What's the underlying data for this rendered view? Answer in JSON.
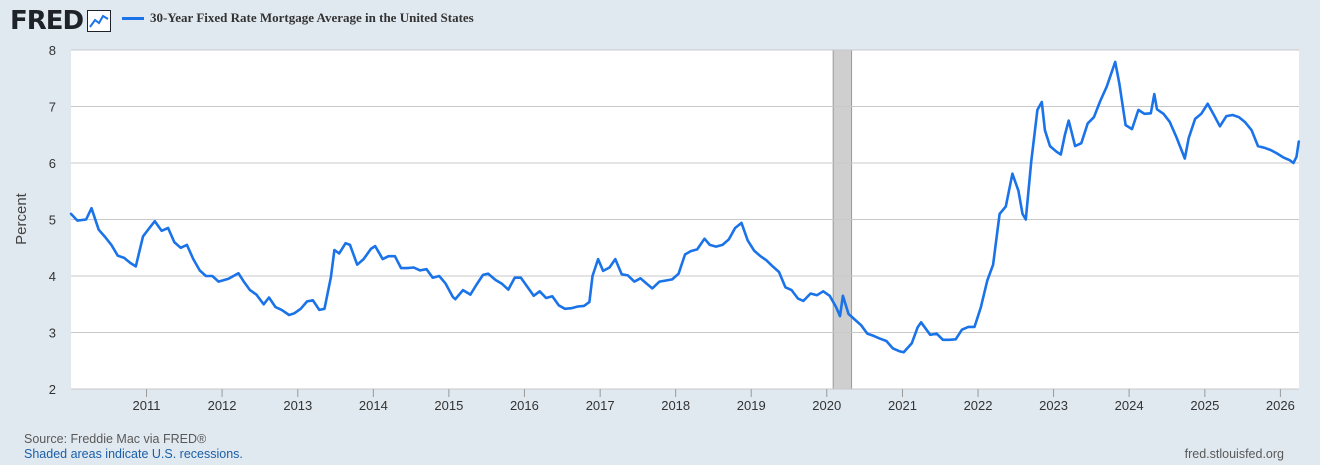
{
  "header": {
    "logo_text": "FRED",
    "logo_icon": "chart-line-icon"
  },
  "colors": {
    "background": "#e1e9f0",
    "plot_bg": "#ffffff",
    "series": "#1a73e8",
    "grid": "#c8c8c8",
    "recession": "#cfcfcf"
  },
  "chart_data": {
    "type": "line",
    "title": "30-Year Fixed Rate Mortgage Average in the United States",
    "ylabel": "Percent",
    "xlabel": "",
    "ylim": [
      2,
      8
    ],
    "xlim": [
      "2010-01-01",
      "2026-04-01"
    ],
    "yticks": [
      2,
      3,
      4,
      5,
      6,
      7,
      8
    ],
    "xticks": [
      "2011",
      "2012",
      "2013",
      "2014",
      "2015",
      "2016",
      "2017",
      "2018",
      "2019",
      "2020",
      "2021",
      "2022",
      "2023",
      "2024",
      "2025",
      "2026"
    ],
    "grid": true,
    "legend_position": "top",
    "recessions": [
      {
        "start": "2020-02-01",
        "end": "2020-04-30"
      }
    ],
    "series": [
      {
        "name": "30-Year Fixed Rate Mortgage Average in the United States",
        "x": [
          "2010-01-01",
          "2010-02-01",
          "2010-03-15",
          "2010-04-10",
          "2010-05-15",
          "2010-06-15",
          "2010-07-15",
          "2010-08-15",
          "2010-09-15",
          "2010-10-15",
          "2010-11-10",
          "2010-12-15",
          "2011-01-15",
          "2011-02-10",
          "2011-03-15",
          "2011-04-15",
          "2011-05-15",
          "2011-06-15",
          "2011-07-15",
          "2011-08-15",
          "2011-09-15",
          "2011-10-15",
          "2011-11-15",
          "2011-12-15",
          "2012-02-01",
          "2012-03-20",
          "2012-04-15",
          "2012-05-15",
          "2012-06-15",
          "2012-07-20",
          "2012-08-15",
          "2012-09-15",
          "2012-10-15",
          "2012-11-20",
          "2012-12-15",
          "2013-01-15",
          "2013-02-15",
          "2013-03-15",
          "2013-04-15",
          "2013-05-10",
          "2013-06-10",
          "2013-06-27",
          "2013-07-20",
          "2013-08-20",
          "2013-09-10",
          "2013-10-15",
          "2013-11-15",
          "2013-12-20",
          "2014-01-10",
          "2014-02-15",
          "2014-03-15",
          "2014-04-15",
          "2014-05-15",
          "2014-06-15",
          "2014-07-15",
          "2014-08-15",
          "2014-09-15",
          "2014-10-15",
          "2014-11-15",
          "2014-12-15",
          "2015-01-20",
          "2015-02-01",
          "2015-03-10",
          "2015-04-15",
          "2015-05-15",
          "2015-06-15",
          "2015-07-10",
          "2015-08-15",
          "2015-09-15",
          "2015-10-15",
          "2015-11-15",
          "2015-12-15",
          "2016-01-15",
          "2016-02-15",
          "2016-03-15",
          "2016-04-15",
          "2016-05-15",
          "2016-06-15",
          "2016-07-15",
          "2016-08-15",
          "2016-09-15",
          "2016-10-15",
          "2016-11-10",
          "2016-11-25",
          "2016-12-22",
          "2017-01-15",
          "2017-02-15",
          "2017-03-15",
          "2017-04-15",
          "2017-05-15",
          "2017-06-15",
          "2017-07-15",
          "2017-08-15",
          "2017-09-10",
          "2017-10-15",
          "2017-11-15",
          "2017-12-15",
          "2018-01-15",
          "2018-02-15",
          "2018-03-15",
          "2018-04-15",
          "2018-05-20",
          "2018-06-15",
          "2018-07-15",
          "2018-08-15",
          "2018-09-15",
          "2018-10-15",
          "2018-11-15",
          "2018-12-15",
          "2019-01-15",
          "2019-02-15",
          "2019-03-15",
          "2019-04-15",
          "2019-05-15",
          "2019-06-15",
          "2019-07-15",
          "2019-08-15",
          "2019-09-10",
          "2019-10-15",
          "2019-11-15",
          "2019-12-15",
          "2020-01-15",
          "2020-02-15",
          "2020-03-05",
          "2020-03-19",
          "2020-04-15",
          "2020-05-15",
          "2020-06-15",
          "2020-07-15",
          "2020-08-15",
          "2020-09-15",
          "2020-10-15",
          "2020-11-15",
          "2020-12-15",
          "2021-01-07",
          "2021-02-15",
          "2021-03-15",
          "2021-04-01",
          "2021-05-15",
          "2021-06-15",
          "2021-07-15",
          "2021-08-15",
          "2021-09-15",
          "2021-10-15",
          "2021-11-15",
          "2021-12-15",
          "2022-01-15",
          "2022-02-15",
          "2022-03-15",
          "2022-04-15",
          "2022-05-15",
          "2022-06-16",
          "2022-07-15",
          "2022-08-04",
          "2022-08-20",
          "2022-09-15",
          "2022-10-15",
          "2022-11-05",
          "2022-11-20",
          "2022-12-15",
          "2023-01-15",
          "2023-02-05",
          "2023-02-25",
          "2023-03-15",
          "2023-04-15",
          "2023-05-15",
          "2023-06-15",
          "2023-07-15",
          "2023-08-15",
          "2023-09-15",
          "2023-10-26",
          "2023-11-15",
          "2023-12-15",
          "2024-01-15",
          "2024-02-15",
          "2024-03-15",
          "2024-04-15",
          "2024-05-02",
          "2024-05-15",
          "2024-06-15",
          "2024-07-15",
          "2024-08-15",
          "2024-09-26",
          "2024-10-15",
          "2024-11-15",
          "2024-12-15",
          "2025-01-15",
          "2025-02-15",
          "2025-03-15",
          "2025-04-15",
          "2025-05-15",
          "2025-06-15",
          "2025-07-15",
          "2025-08-15",
          "2025-09-15",
          "2025-10-15",
          "2025-11-15",
          "2025-12-15",
          "2026-01-15",
          "2026-02-15",
          "2026-03-05",
          "2026-03-20",
          "2026-03-31"
        ],
        "y": [
          5.1,
          4.98,
          5.0,
          5.2,
          4.82,
          4.69,
          4.55,
          4.36,
          4.32,
          4.23,
          4.17,
          4.7,
          4.85,
          4.97,
          4.8,
          4.85,
          4.6,
          4.5,
          4.55,
          4.3,
          4.1,
          4.0,
          4.0,
          3.9,
          3.95,
          4.05,
          3.9,
          3.75,
          3.67,
          3.5,
          3.62,
          3.45,
          3.4,
          3.31,
          3.34,
          3.42,
          3.55,
          3.57,
          3.4,
          3.42,
          3.98,
          4.46,
          4.4,
          4.58,
          4.55,
          4.2,
          4.3,
          4.48,
          4.53,
          4.3,
          4.35,
          4.35,
          4.14,
          4.14,
          4.15,
          4.1,
          4.12,
          3.97,
          4.0,
          3.87,
          3.63,
          3.59,
          3.75,
          3.67,
          3.85,
          4.02,
          4.04,
          3.93,
          3.86,
          3.76,
          3.97,
          3.97,
          3.81,
          3.65,
          3.73,
          3.61,
          3.64,
          3.48,
          3.42,
          3.43,
          3.46,
          3.47,
          3.54,
          4.0,
          4.3,
          4.09,
          4.15,
          4.3,
          4.03,
          4.01,
          3.9,
          3.96,
          3.86,
          3.78,
          3.9,
          3.92,
          3.94,
          4.04,
          4.38,
          4.44,
          4.47,
          4.66,
          4.55,
          4.52,
          4.55,
          4.65,
          4.85,
          4.94,
          4.63,
          4.45,
          4.35,
          4.28,
          4.17,
          4.07,
          3.8,
          3.75,
          3.6,
          3.56,
          3.69,
          3.66,
          3.73,
          3.65,
          3.45,
          3.29,
          3.65,
          3.33,
          3.23,
          3.13,
          2.98,
          2.94,
          2.89,
          2.85,
          2.72,
          2.67,
          2.65,
          2.81,
          3.09,
          3.18,
          2.96,
          2.98,
          2.87,
          2.87,
          2.88,
          3.05,
          3.1,
          3.1,
          3.45,
          3.92,
          4.2,
          5.1,
          5.23,
          5.81,
          5.51,
          5.1,
          5.0,
          6.02,
          6.94,
          7.08,
          6.58,
          6.3,
          6.2,
          6.15,
          6.5,
          6.75,
          6.3,
          6.35,
          6.7,
          6.81,
          7.1,
          7.35,
          7.79,
          7.4,
          6.67,
          6.6,
          6.94,
          6.87,
          6.88,
          7.22,
          6.95,
          6.87,
          6.73,
          6.47,
          6.08,
          6.44,
          6.78,
          6.87,
          7.05,
          6.84,
          6.65,
          6.83,
          6.85,
          6.81,
          6.72,
          6.58,
          6.3,
          6.27,
          6.23,
          6.17,
          6.1,
          6.05,
          6.0,
          6.11,
          6.38
        ]
      }
    ]
  },
  "footer": {
    "source": "Source: Freddie Mac via FRED®",
    "recession_note": "Shaded areas indicate U.S. recessions.",
    "site": "fred.stlouisfed.org"
  }
}
